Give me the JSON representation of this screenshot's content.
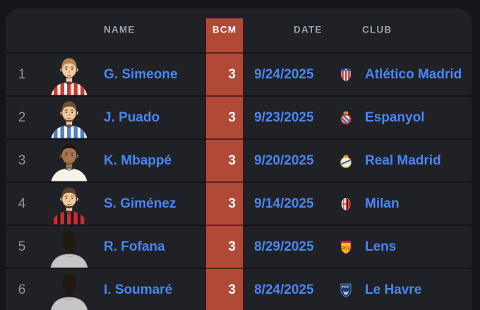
{
  "colors": {
    "background": "#141518",
    "card": "#1f2126",
    "accent": "#b04a37",
    "link": "#4a86f2",
    "muted": "#9aa1a9",
    "rank": "#8f949b",
    "bcm_text": "#ffffff"
  },
  "table": {
    "headers": {
      "name": "NAME",
      "bcm": "BCM",
      "date": "DATE",
      "club": "CLUB"
    },
    "rows": [
      {
        "rank": "1",
        "name": "G. Simeone",
        "bcm": "3",
        "date": "9/24/2025",
        "club": "Atlético Madrid",
        "crest": "atletico-madrid",
        "avatar": {
          "silhouette": false,
          "skin": "#f2c9a2",
          "hair": "#b5854f",
          "hairstyle": "default",
          "beard": null,
          "jersey_base": "#f3f3f3",
          "jersey_stripe": "#d2382c"
        }
      },
      {
        "rank": "2",
        "name": "J. Puado",
        "bcm": "3",
        "date": "9/23/2025",
        "club": "Espanyol",
        "crest": "espanyol",
        "avatar": {
          "silhouette": false,
          "skin": "#f0c69e",
          "hair": "#70502f",
          "hairstyle": "default",
          "beard": "#70502f",
          "jersey_base": "#f3f3f3",
          "jersey_stripe": "#4f7fc4"
        }
      },
      {
        "rank": "3",
        "name": "K. Mbappé",
        "bcm": "3",
        "date": "9/20/2025",
        "club": "Real Madrid",
        "crest": "real-madrid",
        "avatar": {
          "silhouette": false,
          "skin": "#a8734c",
          "hair": "#1e150e",
          "hairstyle": "short",
          "beard": null,
          "jersey_base": "#f5f3ea",
          "jersey_stripe": null
        }
      },
      {
        "rank": "4",
        "name": "S. Giménez",
        "bcm": "3",
        "date": "9/14/2025",
        "club": "Milan",
        "crest": "milan",
        "avatar": {
          "silhouette": false,
          "skin": "#f0c79f",
          "hair": "#5c4229",
          "hairstyle": "default",
          "beard": "#4f3a26",
          "jersey_base": "#1b1b1b",
          "jersey_stripe": "#cb2b33"
        }
      },
      {
        "rank": "5",
        "name": "R. Fofana",
        "bcm": "3",
        "date": "8/29/2025",
        "club": "Lens",
        "crest": "lens",
        "avatar": {
          "silhouette": true
        }
      },
      {
        "rank": "6",
        "name": "I. Soumaré",
        "bcm": "3",
        "date": "8/24/2025",
        "club": "Le Havre",
        "crest": "le-havre",
        "avatar": {
          "silhouette": true
        }
      }
    ]
  }
}
